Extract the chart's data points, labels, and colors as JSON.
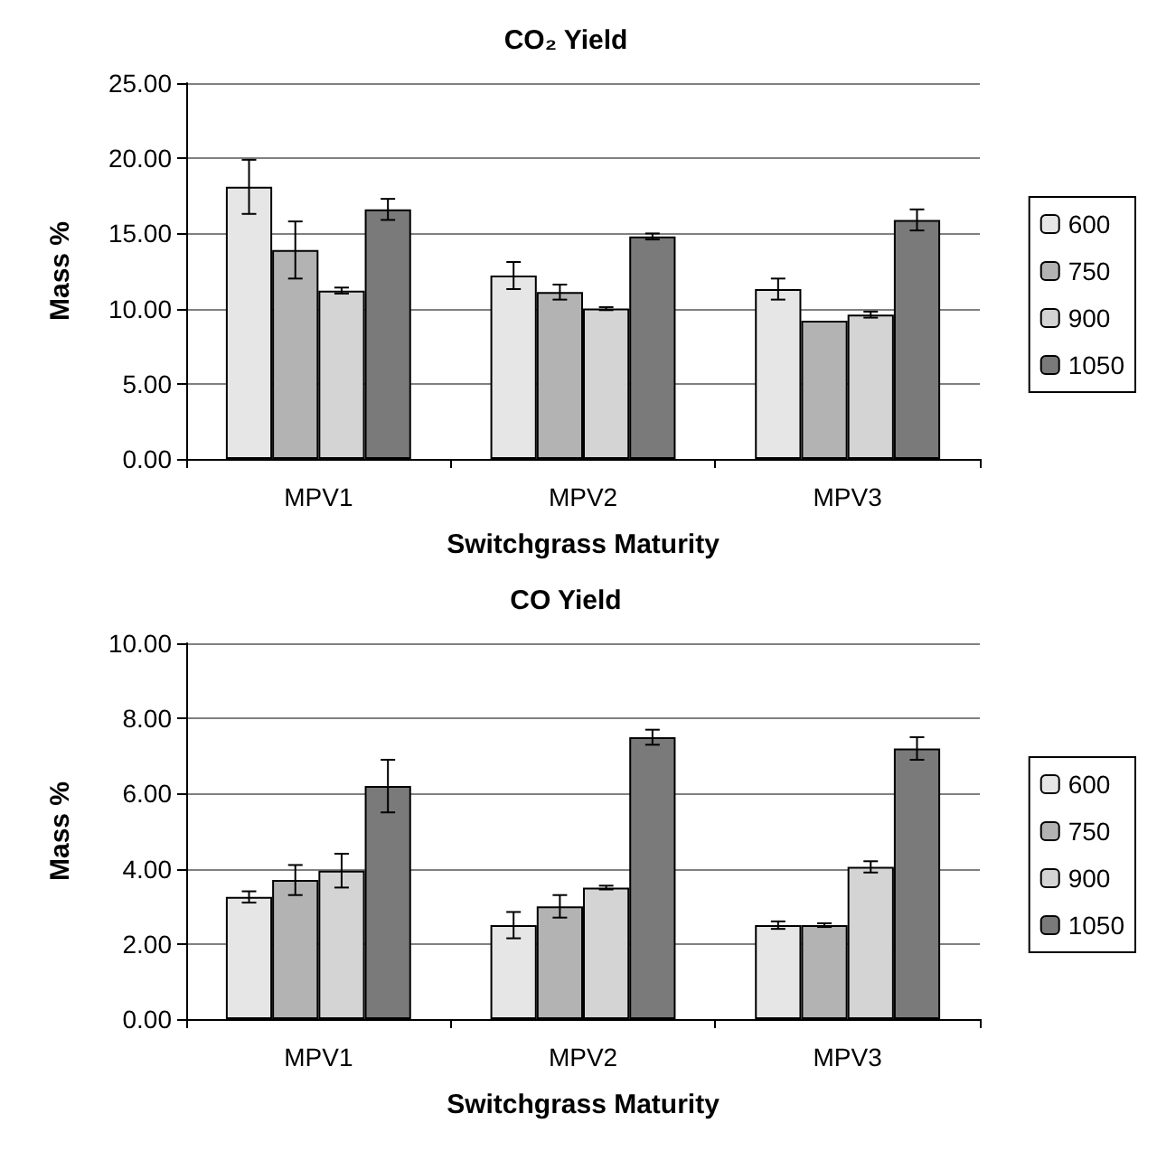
{
  "chart_data": [
    {
      "type": "bar",
      "title": "CO₂ Yield",
      "xlabel": "Switchgrass Maturity",
      "ylabel": "Mass %",
      "categories": [
        "MPV1",
        "MPV2",
        "MPV3"
      ],
      "series": [
        {
          "name": "600",
          "color": "#e6e6e6",
          "values": [
            18.1,
            12.2,
            11.3
          ],
          "errors": [
            1.8,
            0.9,
            0.7
          ]
        },
        {
          "name": "750",
          "color": "#b3b3b3",
          "values": [
            13.9,
            11.1,
            9.2
          ],
          "errors": [
            1.9,
            0.5,
            null
          ]
        },
        {
          "name": "900",
          "color": "#d4d4d4",
          "values": [
            11.2,
            10.0,
            9.6
          ],
          "errors": [
            0.2,
            0.1,
            0.2
          ]
        },
        {
          "name": "1050",
          "color": "#7a7a7a",
          "values": [
            16.6,
            14.8,
            15.9
          ],
          "errors": [
            0.7,
            0.2,
            0.7
          ]
        }
      ],
      "ylim": [
        0,
        25
      ],
      "yticks": [
        {
          "value": 0,
          "label": "0.00"
        },
        {
          "value": 5,
          "label": "5.00"
        },
        {
          "value": 10,
          "label": "10.00"
        },
        {
          "value": 15,
          "label": "15.00"
        },
        {
          "value": 20,
          "label": "20.00"
        },
        {
          "value": 25,
          "label": "25.00"
        }
      ],
      "grid": "y",
      "legend": "right"
    },
    {
      "type": "bar",
      "title": "CO Yield",
      "xlabel": "Switchgrass Maturity",
      "ylabel": "Mass %",
      "categories": [
        "MPV1",
        "MPV2",
        "MPV3"
      ],
      "series": [
        {
          "name": "600",
          "color": "#e6e6e6",
          "values": [
            3.25,
            2.5,
            2.5
          ],
          "errors": [
            0.15,
            0.35,
            0.1
          ]
        },
        {
          "name": "750",
          "color": "#b3b3b3",
          "values": [
            3.7,
            3.0,
            2.5
          ],
          "errors": [
            0.4,
            0.3,
            0.05
          ]
        },
        {
          "name": "900",
          "color": "#d4d4d4",
          "values": [
            3.95,
            3.5,
            4.05
          ],
          "errors": [
            0.45,
            0.05,
            0.15
          ]
        },
        {
          "name": "1050",
          "color": "#7a7a7a",
          "values": [
            6.2,
            7.5,
            7.2
          ],
          "errors": [
            0.7,
            0.2,
            0.3
          ]
        }
      ],
      "ylim": [
        0,
        10
      ],
      "yticks": [
        {
          "value": 0,
          "label": "0.00"
        },
        {
          "value": 2,
          "label": "2.00"
        },
        {
          "value": 4,
          "label": "4.00"
        },
        {
          "value": 6,
          "label": "6.00"
        },
        {
          "value": 8,
          "label": "8.00"
        },
        {
          "value": 10,
          "label": "10.00"
        }
      ],
      "grid": "y",
      "legend": "right"
    }
  ]
}
